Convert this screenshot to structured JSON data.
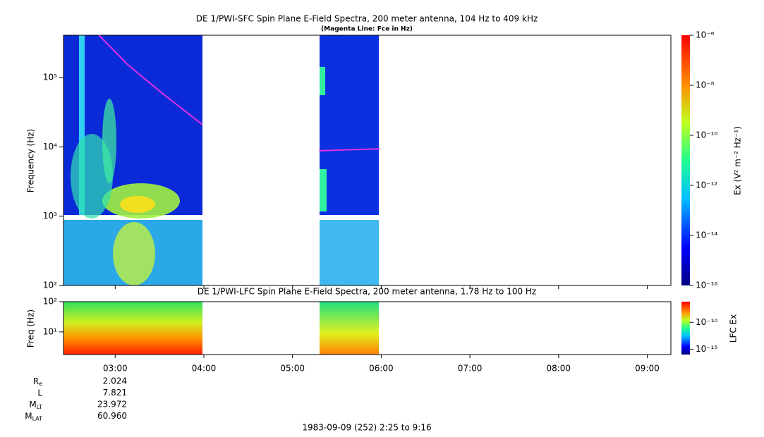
{
  "chart_data": [
    {
      "type": "spectrogram",
      "title": "DE 1/PWI-SFC  Spin Plane E-Field Spectra, 200 meter antenna, 104 Hz to 409 kHz",
      "subtitle": "(Magenta Line: Fce in Hz)",
      "y_label": "Frequency (Hz)",
      "log_y": true,
      "ylim": [
        100,
        409000
      ],
      "yticks": [
        {
          "value": 100,
          "label": "10²"
        },
        {
          "value": 1000,
          "label": "10³"
        },
        {
          "value": 10000,
          "label": "10⁴"
        },
        {
          "value": 100000,
          "label": "10⁵"
        }
      ],
      "xlim": [
        "02:25",
        "09:16"
      ],
      "xticks": [
        "03:00",
        "04:00",
        "05:00",
        "06:00",
        "07:00",
        "08:00",
        "09:00"
      ],
      "series": [
        {
          "name": "Fce",
          "color": "#e030e0",
          "x": [
            "02:49",
            "03:09",
            "03:32",
            "03:59",
            "04:30",
            "05:18",
            "05:59"
          ],
          "values": [
            409000,
            150000,
            59000,
            21000,
            null,
            8800,
            9400
          ]
        }
      ],
      "colorbar": {
        "label": "Ex (V² m⁻² Hz⁻¹)",
        "clim": [
          1e-16,
          1e-06
        ],
        "ticks": [
          {
            "value": 1e-16,
            "label": "10⁻¹⁶"
          },
          {
            "value": 1e-14,
            "label": "10⁻¹⁴"
          },
          {
            "value": 1e-12,
            "label": "10⁻¹²"
          },
          {
            "value": 1e-10,
            "label": "10⁻¹⁰"
          },
          {
            "value": 1e-08,
            "label": "10⁻⁸"
          },
          {
            "value": 1e-06,
            "label": "10⁻⁶"
          }
        ]
      }
    },
    {
      "type": "spectrogram",
      "title": "DE 1/PWI-LFC  Spin Plane E-Field Spectra, 200 meter antenna, 1.78 Hz to 100 Hz",
      "y_label": "Freq (Hz)",
      "log_y": true,
      "ylim": [
        1.78,
        100
      ],
      "yticks": [
        {
          "value": 10,
          "label": "10¹"
        },
        {
          "value": 100,
          "label": "10²"
        }
      ],
      "xlim": [
        "02:25",
        "09:16"
      ],
      "xticks": [
        "03:00",
        "04:00",
        "05:00",
        "06:00",
        "07:00",
        "08:00",
        "09:00"
      ],
      "colorbar": {
        "label": "LFC Ex",
        "clim": [
          1e-16,
          7e-07
        ],
        "ticks": [
          {
            "value": 1e-15,
            "label": "10⁻¹⁵"
          },
          {
            "value": 1e-10,
            "label": "10⁻¹⁰"
          }
        ]
      }
    }
  ],
  "ephemeris": {
    "labels": [
      {
        "main": "R",
        "sub": "e"
      },
      {
        "main": "L",
        "sub": ""
      },
      {
        "main": "M",
        "sub": "LT"
      },
      {
        "main": "M",
        "sub": "LAT"
      }
    ],
    "values": [
      "2.024",
      "7.821",
      "23.972",
      "60.960"
    ]
  },
  "footer": "1983-09-09 (252) 2:25 to 9:16"
}
